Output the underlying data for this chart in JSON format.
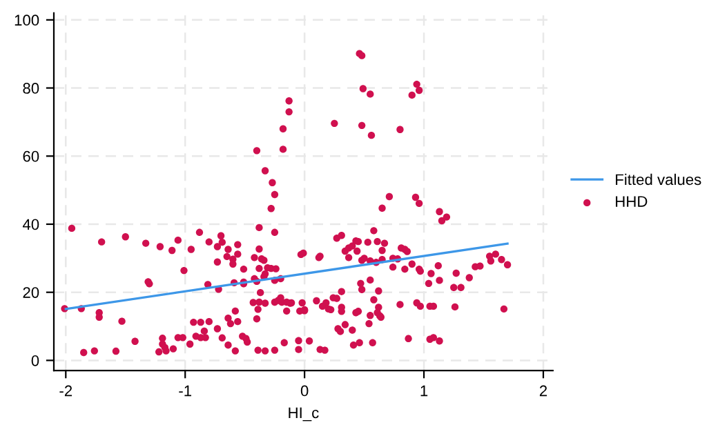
{
  "chart_data": {
    "type": "scatter",
    "xlabel": "HI_c",
    "xlim": [
      -2.1,
      2.08
    ],
    "ylim": [
      -3,
      102
    ],
    "xticks": [
      -2,
      -1,
      0,
      1,
      2
    ],
    "yticks": [
      0,
      20,
      40,
      60,
      80,
      100
    ],
    "grid": true,
    "legend": "right",
    "series": [
      {
        "name": "Fitted values",
        "type": "line",
        "color": "#3d97e8",
        "marker": "none",
        "line_style": "solid",
        "x": [
          -2.0,
          1.7
        ],
        "values": [
          15.1,
          34.3
        ]
      },
      {
        "name": "HHD",
        "color": "#d0104f",
        "marker": "circle",
        "x": [
          -0.13,
          -0.13,
          -0.18,
          -0.18,
          -0.4,
          -0.33,
          -0.27,
          -0.25,
          0.46,
          0.48,
          0.49,
          0.55,
          0.94,
          0.96,
          0.9,
          0.25,
          0.48,
          0.56,
          0.8,
          0.71,
          0.93,
          0.96,
          -1.95,
          -2.01,
          -1.87,
          -1.7,
          -1.5,
          -1.33,
          -1.21,
          -1.11,
          -1.06,
          -0.95,
          -0.88,
          -1.01,
          -1.31,
          -1.3,
          -1.72,
          -1.72,
          -1.53,
          -1.85,
          -1.76,
          -1.58,
          -1.42,
          -1.22,
          -1.19,
          -1.19,
          -1.17,
          -1.16,
          -1.1,
          -1.06,
          -1.02,
          -0.96,
          -0.93,
          -0.87,
          -0.8,
          -0.91,
          -0.87,
          -0.83,
          -0.84,
          -0.73,
          -0.69,
          -0.64,
          -0.58,
          -0.64,
          -0.62,
          -0.58,
          -0.56,
          -0.52,
          -0.49,
          -0.48,
          -0.4,
          -0.39,
          -0.43,
          -0.38,
          -0.37,
          -0.33,
          -0.25,
          -0.22,
          -0.2,
          -0.19,
          -0.15,
          -0.15,
          -0.11,
          -0.04,
          0.0,
          -0.05,
          -0.05,
          -0.17,
          -0.25,
          -0.33,
          -0.39,
          -0.81,
          -0.72,
          -0.59,
          -0.51,
          -0.51,
          -0.42,
          -0.4,
          -0.34,
          -0.33,
          -0.25,
          -0.51,
          -0.42,
          -0.38,
          -0.31,
          -0.28,
          -0.24,
          -0.36,
          -0.34,
          -0.38,
          -0.56,
          -0.56,
          -0.64,
          -0.65,
          -0.6,
          -0.6,
          -0.73,
          -0.73,
          -0.69,
          -0.8,
          -0.7,
          -0.38,
          -0.25,
          -0.28,
          -0.03,
          -0.01,
          0.65,
          1.13,
          1.19,
          1.15,
          0.27,
          0.31,
          0.58,
          0.34,
          0.37,
          0.4,
          0.43,
          0.45,
          0.53,
          0.61,
          0.67,
          0.65,
          0.44,
          0.37,
          0.48,
          0.5,
          0.55,
          0.6,
          0.65,
          0.74,
          0.78,
          0.81,
          0.84,
          0.86,
          0.74,
          0.84,
          0.9,
          0.96,
          0.97,
          1.06,
          1.12,
          1.04,
          1.13,
          1.27,
          1.25,
          1.31,
          1.38,
          1.43,
          1.47,
          1.55,
          1.56,
          1.6,
          1.65,
          1.7,
          1.67,
          1.26,
          1.05,
          1.08,
          0.97,
          0.94,
          0.8,
          0.13,
          0.12,
          0.47,
          0.48,
          0.55,
          0.62,
          0.31,
          0.24,
          0.27,
          0.1,
          0.18,
          0.15,
          0.2,
          0.22,
          0.31,
          0.31,
          0.43,
          0.45,
          0.58,
          0.62,
          0.61,
          0.63,
          0.64,
          0.55,
          0.54,
          0.34,
          0.28,
          0.3,
          0.4,
          0.41,
          0.46,
          0.57,
          0.13,
          0.17,
          0.04,
          -0.02,
          0.0,
          -0.12,
          0.87,
          1.05,
          1.08,
          1.13,
          -0.2
        ],
        "values": [
          76.2,
          73.0,
          68.0,
          62.0,
          61.6,
          55.7,
          52.2,
          48.7,
          90.1,
          89.5,
          79.8,
          78.2,
          81.1,
          79.3,
          77.9,
          69.6,
          69.0,
          66.1,
          67.8,
          48.1,
          47.9,
          46.1,
          38.8,
          15.2,
          15.2,
          34.8,
          36.3,
          34.4,
          33.4,
          32.3,
          35.3,
          32.6,
          37.6,
          26.4,
          23.1,
          22.5,
          14.0,
          12.7,
          11.5,
          2.3,
          2.8,
          2.7,
          5.6,
          2.5,
          6.5,
          4.8,
          3.8,
          2.8,
          3.4,
          6.7,
          6.7,
          4.8,
          11.2,
          11.2,
          11.4,
          7.1,
          6.7,
          6.7,
          8.6,
          9.3,
          6.6,
          4.5,
          2.8,
          12.4,
          10.8,
          14.5,
          11.4,
          7.1,
          6.4,
          5.4,
          12.2,
          15.0,
          17.0,
          17.1,
          19.9,
          16.8,
          17.1,
          17.6,
          18.4,
          17.1,
          17.1,
          14.5,
          16.9,
          14.5,
          14.6,
          5.8,
          3.2,
          5.2,
          3.0,
          2.8,
          3.0,
          22.3,
          20.9,
          22.8,
          22.5,
          23.0,
          24.0,
          23.2,
          24.6,
          25.4,
          23.5,
          26.8,
          30.2,
          27.0,
          27.2,
          27.0,
          26.9,
          29.8,
          29.4,
          32.7,
          31.2,
          34.0,
          32.6,
          30.5,
          29.7,
          28.3,
          28.9,
          33.4,
          34.7,
          34.8,
          36.6,
          39.0,
          37.6,
          44.6,
          31.1,
          31.5,
          44.7,
          43.7,
          42.1,
          41.0,
          35.9,
          36.7,
          38.1,
          32.1,
          33.0,
          33.6,
          35.1,
          34.9,
          34.7,
          34.9,
          34.4,
          32.3,
          32.1,
          30.2,
          29.4,
          30.0,
          29.2,
          28.8,
          29.6,
          30.0,
          29.8,
          33.0,
          32.6,
          32.0,
          27.4,
          26.8,
          28.3,
          26.8,
          26.2,
          25.5,
          27.8,
          22.6,
          23.5,
          25.6,
          21.4,
          21.4,
          24.3,
          27.5,
          27.7,
          30.6,
          29.2,
          31.2,
          29.6,
          28.1,
          15.1,
          15.7,
          15.9,
          15.9,
          15.9,
          16.9,
          16.4,
          30.6,
          30.2,
          22.6,
          20.8,
          23.6,
          20.4,
          20.2,
          18.4,
          18.2,
          17.5,
          16.9,
          15.9,
          15.1,
          14.9,
          15.6,
          14.4,
          14.0,
          14.4,
          17.8,
          15.6,
          14.0,
          13.1,
          12.7,
          13.2,
          10.8,
          10.5,
          9.3,
          8.5,
          8.9,
          4.5,
          5.2,
          5.2,
          3.2,
          3.0,
          5.7,
          16.9,
          14.9,
          16.8,
          6.4,
          6.2,
          6.7,
          5.7,
          24.0
        ]
      }
    ]
  }
}
